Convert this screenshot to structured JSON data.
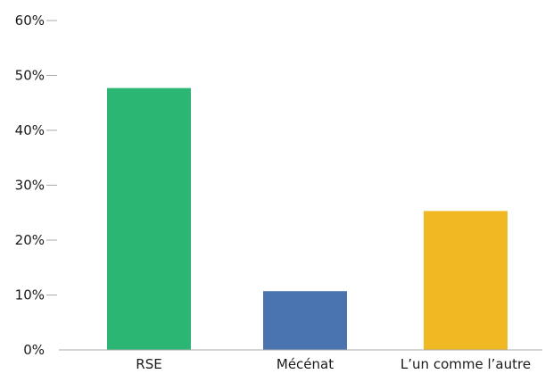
{
  "chart_data": {
    "type": "bar",
    "categories": [
      "RSE",
      "Mécénat",
      "L’un comme l’autre"
    ],
    "values": [
      47.7,
      10.7,
      25.3
    ],
    "colors": [
      "#2bb673",
      "#4a74b0",
      "#f0b823"
    ],
    "ylim": [
      0,
      60
    ],
    "yticks": [
      0,
      10,
      20,
      30,
      40,
      50,
      60
    ],
    "ytick_labels": [
      "0%",
      "10%",
      "20%",
      "30%",
      "40%",
      "50%",
      "60%"
    ],
    "grid": false,
    "axis_color": "#aaaaaa"
  }
}
